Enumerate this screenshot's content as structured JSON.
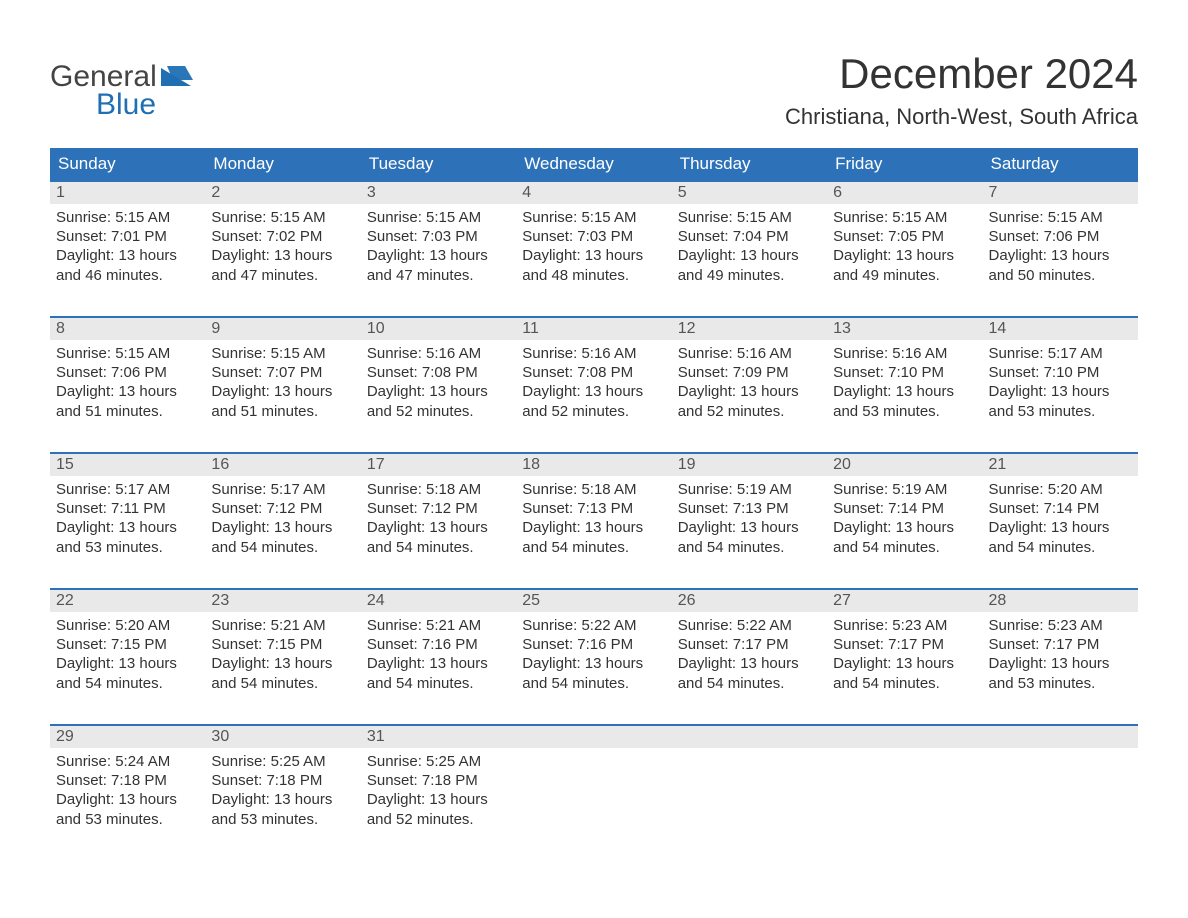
{
  "brand": {
    "word1": "General",
    "word2": "Blue",
    "flag_color": "#1f6fb2"
  },
  "title": {
    "month": "December 2024",
    "location": "Christiana, North-West, South Africa"
  },
  "colors": {
    "header_bg": "#2d72b8",
    "header_text": "#ffffff",
    "daynum_bg": "#e9e9e9",
    "body_text": "#333333",
    "rule": "#2d72b8"
  },
  "weekdays": [
    "Sunday",
    "Monday",
    "Tuesday",
    "Wednesday",
    "Thursday",
    "Friday",
    "Saturday"
  ],
  "weeks": [
    [
      {
        "n": "1",
        "sr": "Sunrise: 5:15 AM",
        "ss": "Sunset: 7:01 PM",
        "d1": "Daylight: 13 hours",
        "d2": "and 46 minutes."
      },
      {
        "n": "2",
        "sr": "Sunrise: 5:15 AM",
        "ss": "Sunset: 7:02 PM",
        "d1": "Daylight: 13 hours",
        "d2": "and 47 minutes."
      },
      {
        "n": "3",
        "sr": "Sunrise: 5:15 AM",
        "ss": "Sunset: 7:03 PM",
        "d1": "Daylight: 13 hours",
        "d2": "and 47 minutes."
      },
      {
        "n": "4",
        "sr": "Sunrise: 5:15 AM",
        "ss": "Sunset: 7:03 PM",
        "d1": "Daylight: 13 hours",
        "d2": "and 48 minutes."
      },
      {
        "n": "5",
        "sr": "Sunrise: 5:15 AM",
        "ss": "Sunset: 7:04 PM",
        "d1": "Daylight: 13 hours",
        "d2": "and 49 minutes."
      },
      {
        "n": "6",
        "sr": "Sunrise: 5:15 AM",
        "ss": "Sunset: 7:05 PM",
        "d1": "Daylight: 13 hours",
        "d2": "and 49 minutes."
      },
      {
        "n": "7",
        "sr": "Sunrise: 5:15 AM",
        "ss": "Sunset: 7:06 PM",
        "d1": "Daylight: 13 hours",
        "d2": "and 50 minutes."
      }
    ],
    [
      {
        "n": "8",
        "sr": "Sunrise: 5:15 AM",
        "ss": "Sunset: 7:06 PM",
        "d1": "Daylight: 13 hours",
        "d2": "and 51 minutes."
      },
      {
        "n": "9",
        "sr": "Sunrise: 5:15 AM",
        "ss": "Sunset: 7:07 PM",
        "d1": "Daylight: 13 hours",
        "d2": "and 51 minutes."
      },
      {
        "n": "10",
        "sr": "Sunrise: 5:16 AM",
        "ss": "Sunset: 7:08 PM",
        "d1": "Daylight: 13 hours",
        "d2": "and 52 minutes."
      },
      {
        "n": "11",
        "sr": "Sunrise: 5:16 AM",
        "ss": "Sunset: 7:08 PM",
        "d1": "Daylight: 13 hours",
        "d2": "and 52 minutes."
      },
      {
        "n": "12",
        "sr": "Sunrise: 5:16 AM",
        "ss": "Sunset: 7:09 PM",
        "d1": "Daylight: 13 hours",
        "d2": "and 52 minutes."
      },
      {
        "n": "13",
        "sr": "Sunrise: 5:16 AM",
        "ss": "Sunset: 7:10 PM",
        "d1": "Daylight: 13 hours",
        "d2": "and 53 minutes."
      },
      {
        "n": "14",
        "sr": "Sunrise: 5:17 AM",
        "ss": "Sunset: 7:10 PM",
        "d1": "Daylight: 13 hours",
        "d2": "and 53 minutes."
      }
    ],
    [
      {
        "n": "15",
        "sr": "Sunrise: 5:17 AM",
        "ss": "Sunset: 7:11 PM",
        "d1": "Daylight: 13 hours",
        "d2": "and 53 minutes."
      },
      {
        "n": "16",
        "sr": "Sunrise: 5:17 AM",
        "ss": "Sunset: 7:12 PM",
        "d1": "Daylight: 13 hours",
        "d2": "and 54 minutes."
      },
      {
        "n": "17",
        "sr": "Sunrise: 5:18 AM",
        "ss": "Sunset: 7:12 PM",
        "d1": "Daylight: 13 hours",
        "d2": "and 54 minutes."
      },
      {
        "n": "18",
        "sr": "Sunrise: 5:18 AM",
        "ss": "Sunset: 7:13 PM",
        "d1": "Daylight: 13 hours",
        "d2": "and 54 minutes."
      },
      {
        "n": "19",
        "sr": "Sunrise: 5:19 AM",
        "ss": "Sunset: 7:13 PM",
        "d1": "Daylight: 13 hours",
        "d2": "and 54 minutes."
      },
      {
        "n": "20",
        "sr": "Sunrise: 5:19 AM",
        "ss": "Sunset: 7:14 PM",
        "d1": "Daylight: 13 hours",
        "d2": "and 54 minutes."
      },
      {
        "n": "21",
        "sr": "Sunrise: 5:20 AM",
        "ss": "Sunset: 7:14 PM",
        "d1": "Daylight: 13 hours",
        "d2": "and 54 minutes."
      }
    ],
    [
      {
        "n": "22",
        "sr": "Sunrise: 5:20 AM",
        "ss": "Sunset: 7:15 PM",
        "d1": "Daylight: 13 hours",
        "d2": "and 54 minutes."
      },
      {
        "n": "23",
        "sr": "Sunrise: 5:21 AM",
        "ss": "Sunset: 7:15 PM",
        "d1": "Daylight: 13 hours",
        "d2": "and 54 minutes."
      },
      {
        "n": "24",
        "sr": "Sunrise: 5:21 AM",
        "ss": "Sunset: 7:16 PM",
        "d1": "Daylight: 13 hours",
        "d2": "and 54 minutes."
      },
      {
        "n": "25",
        "sr": "Sunrise: 5:22 AM",
        "ss": "Sunset: 7:16 PM",
        "d1": "Daylight: 13 hours",
        "d2": "and 54 minutes."
      },
      {
        "n": "26",
        "sr": "Sunrise: 5:22 AM",
        "ss": "Sunset: 7:17 PM",
        "d1": "Daylight: 13 hours",
        "d2": "and 54 minutes."
      },
      {
        "n": "27",
        "sr": "Sunrise: 5:23 AM",
        "ss": "Sunset: 7:17 PM",
        "d1": "Daylight: 13 hours",
        "d2": "and 54 minutes."
      },
      {
        "n": "28",
        "sr": "Sunrise: 5:23 AM",
        "ss": "Sunset: 7:17 PM",
        "d1": "Daylight: 13 hours",
        "d2": "and 53 minutes."
      }
    ],
    [
      {
        "n": "29",
        "sr": "Sunrise: 5:24 AM",
        "ss": "Sunset: 7:18 PM",
        "d1": "Daylight: 13 hours",
        "d2": "and 53 minutes."
      },
      {
        "n": "30",
        "sr": "Sunrise: 5:25 AM",
        "ss": "Sunset: 7:18 PM",
        "d1": "Daylight: 13 hours",
        "d2": "and 53 minutes."
      },
      {
        "n": "31",
        "sr": "Sunrise: 5:25 AM",
        "ss": "Sunset: 7:18 PM",
        "d1": "Daylight: 13 hours",
        "d2": "and 52 minutes."
      },
      {
        "empty": true
      },
      {
        "empty": true
      },
      {
        "empty": true
      },
      {
        "empty": true
      }
    ]
  ]
}
